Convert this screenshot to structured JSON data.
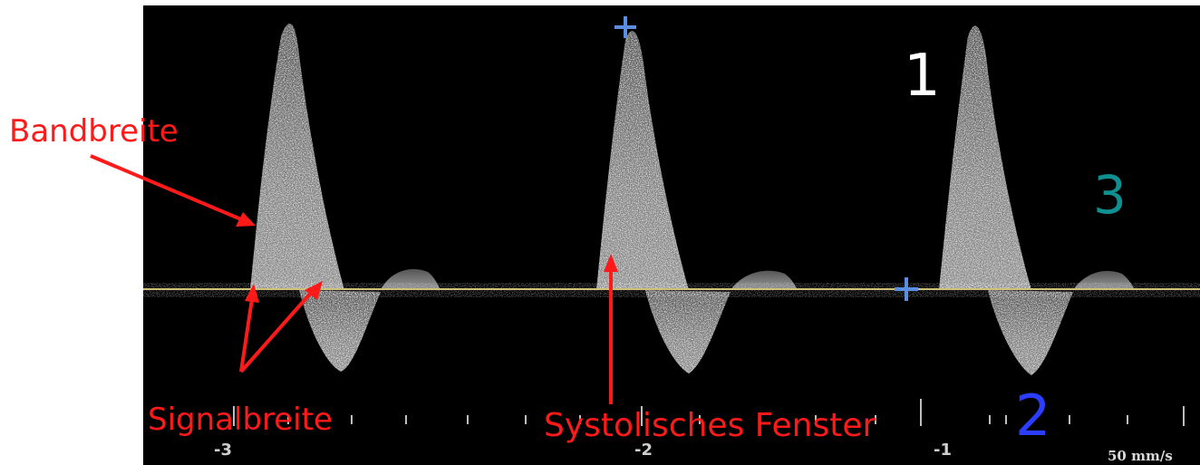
{
  "annotations": {
    "bandbreite": "Bandbreite",
    "signalbreite": "Signalbreite",
    "systolisches_fenster": "Systolisches Fenster"
  },
  "numbers": {
    "one": "1",
    "two": "2",
    "three": "3"
  },
  "axis": {
    "tick_labels": [
      "-3",
      "-2",
      "-1"
    ],
    "scale_text": "50 mm/s"
  },
  "colors": {
    "background": "#000000",
    "annotation": "#ff1a1a",
    "baseline": "#cfc278",
    "number_1": "#ffffff",
    "number_2": "#2b3dff",
    "number_3": "#0f8f8f",
    "marker": "#5b8de0"
  }
}
